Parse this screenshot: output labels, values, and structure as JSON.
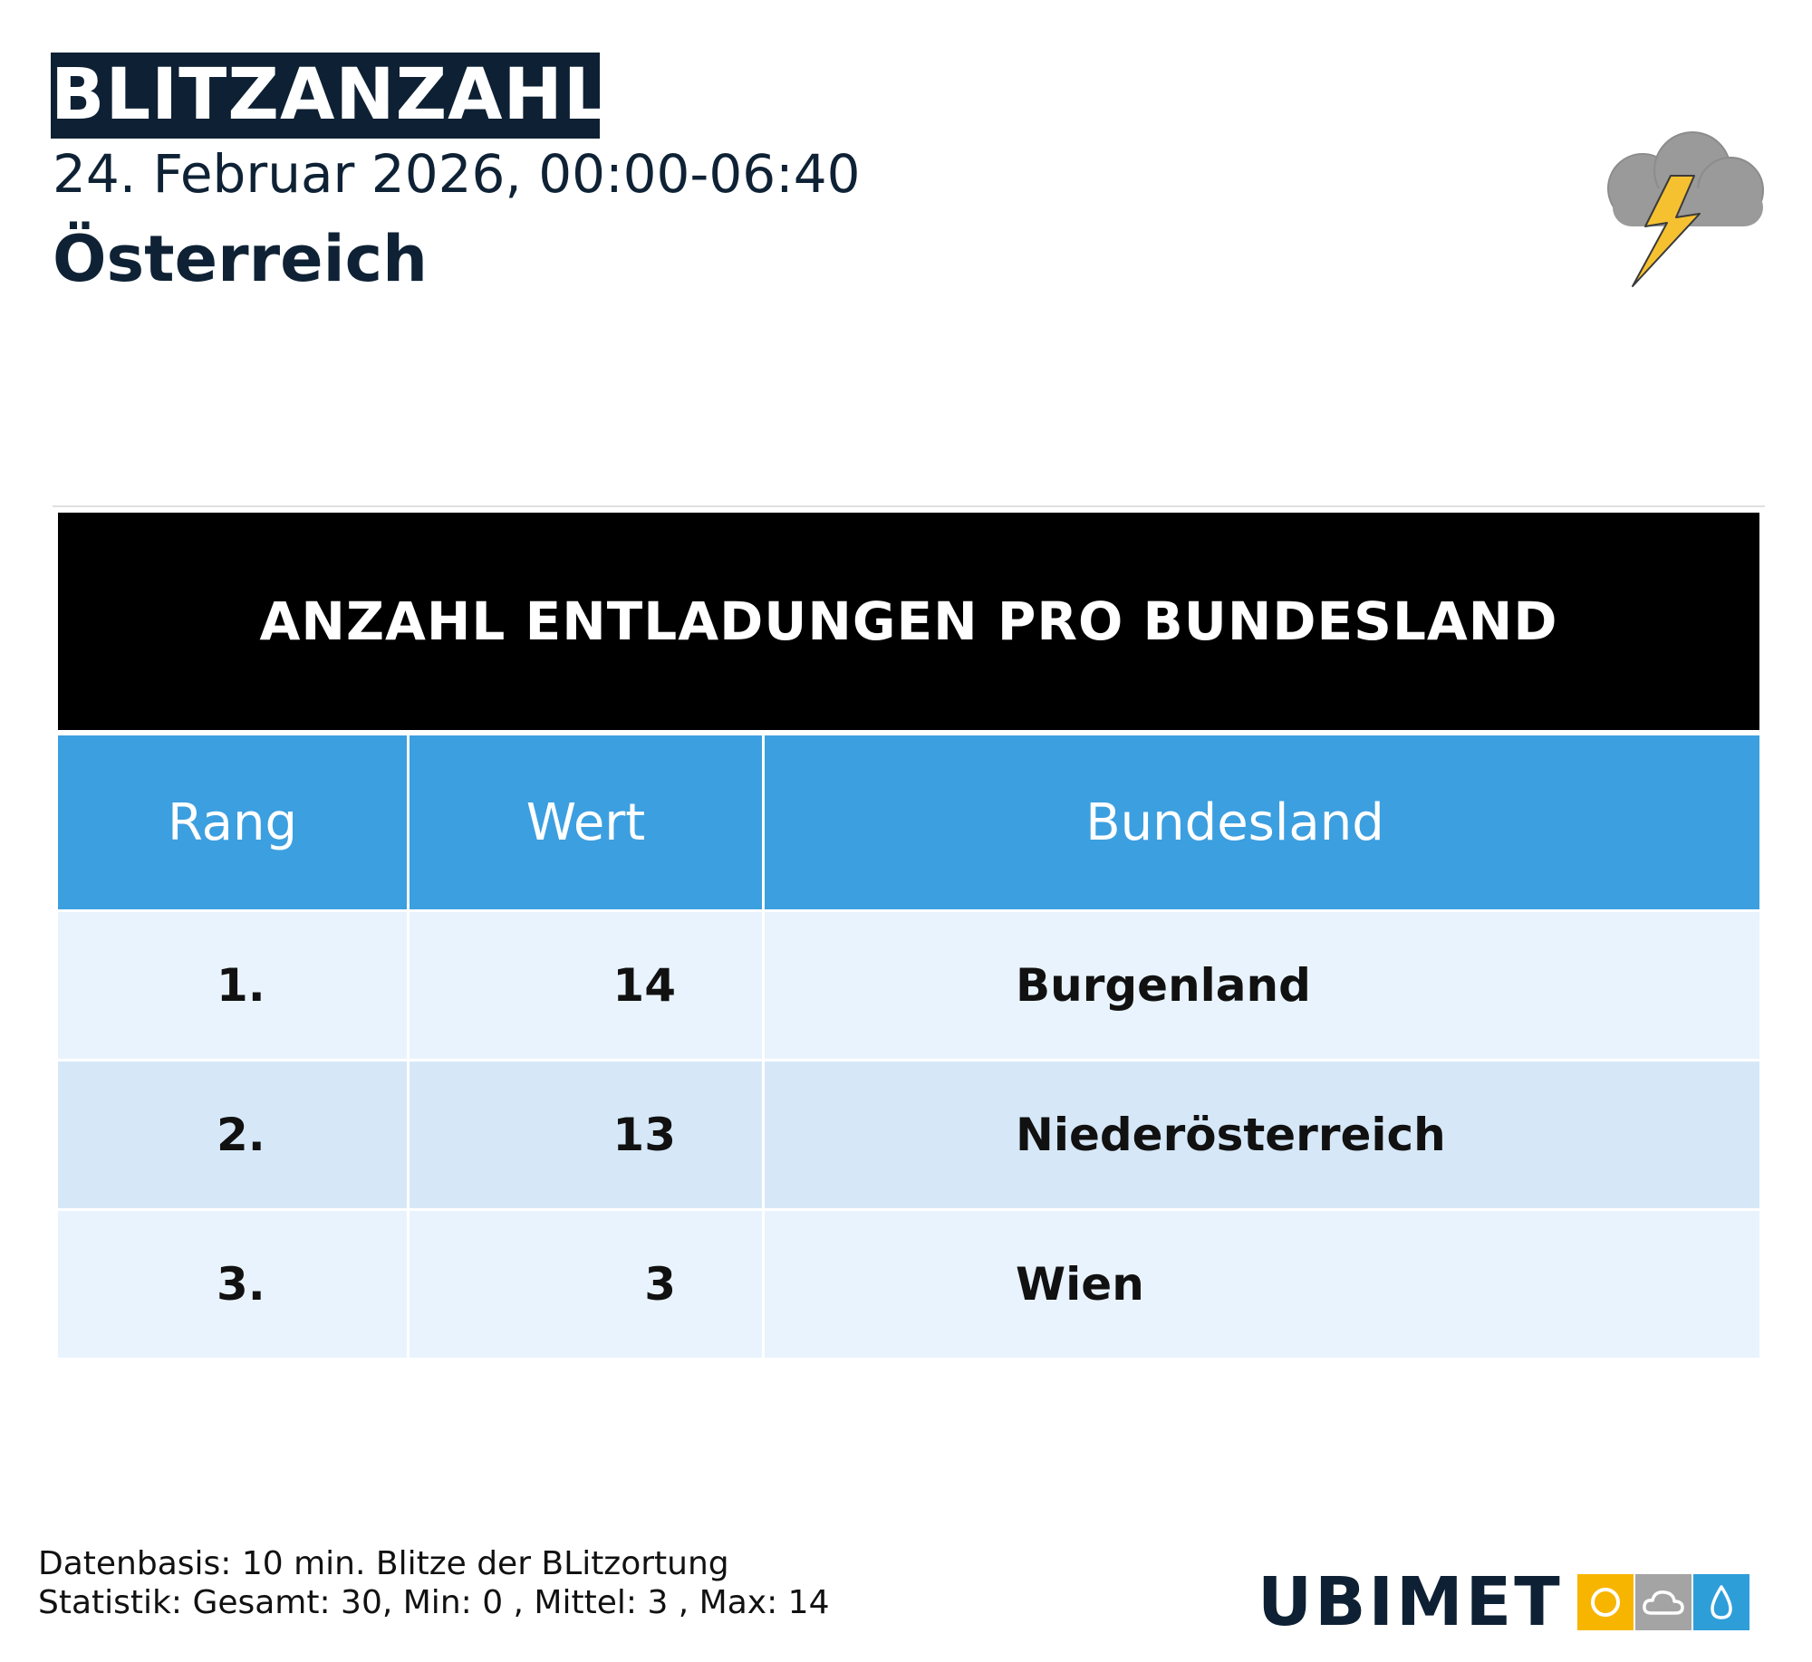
{
  "header": {
    "title": "BLITZANZAHL",
    "date_range": "24. Februar 2026, 00:00-06:40",
    "region": "Österreich"
  },
  "table": {
    "title": "ANZAHL ENTLADUNGEN PRO BUNDESLAND",
    "columns": [
      "Rang",
      "Wert",
      "Bundesland"
    ],
    "rows": [
      {
        "rank": "1.",
        "value": "14",
        "state": "Burgenland"
      },
      {
        "rank": "2.",
        "value": "13",
        "state": "Niederösterreich"
      },
      {
        "rank": "3.",
        "value": "3",
        "state": "Wien"
      }
    ]
  },
  "footer": {
    "line1": "Datenbasis: 10 min. Blitze der BLitzortung",
    "line2": "Statistik: Gesamt: 30, Min: 0 , Mittel: 3 , Max: 14"
  },
  "logo": {
    "text": "UBIMET",
    "icons": [
      "sun-icon",
      "cloud-icon",
      "drop-icon"
    ]
  },
  "colors": {
    "navy": "#0e2033",
    "header_blue": "#3c9fe0",
    "row_light": "#e9f3fd",
    "row_alt": "#d6e8f8",
    "sun_yellow": "#f7b500",
    "cloud_gray": "#a4a4a4",
    "drop_blue": "#2e9ed9"
  },
  "icons": {
    "weather": "thunderstorm-cloud-icon"
  }
}
